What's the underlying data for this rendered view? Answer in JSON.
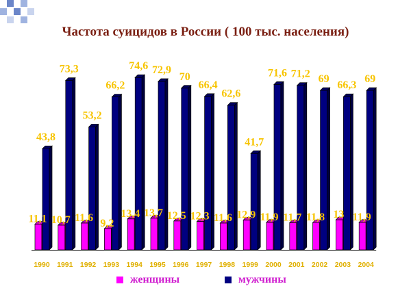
{
  "title": "Частота суицидов в России ( 100 тыс. населения)",
  "colors": {
    "women": "#ff00ff",
    "men": "#000080",
    "value_label": "#f7c400",
    "tick_label": "#e0b000",
    "title": "#7a1f12",
    "legend_text": "#d020d0"
  },
  "legend": [
    {
      "name": "женщины",
      "color": "#ff00ff"
    },
    {
      "name": "мужчины",
      "color": "#000080"
    }
  ],
  "chart_data": {
    "type": "bar",
    "title": "Частота суицидов в России ( 100 тыс. населения)",
    "categories": [
      "1990",
      "1991",
      "1992",
      "1993",
      "1994",
      "1995",
      "1996",
      "1997",
      "1998",
      "1999",
      "2000",
      "2001",
      "2002",
      "2003",
      "2004"
    ],
    "series": [
      {
        "name": "женщины",
        "values": [
          11.1,
          10.7,
          11.6,
          9.2,
          13.4,
          13.7,
          12.5,
          12.3,
          11.6,
          12.9,
          11.9,
          11.7,
          11.8,
          13,
          11.9
        ],
        "labels": [
          "11,1",
          "10,7",
          "11,6",
          "9,2",
          "13,4",
          "13,7",
          "12,5",
          "12,3",
          "11,6",
          "12,9",
          "11,9",
          "11,7",
          "11,8",
          "13",
          "11,9"
        ]
      },
      {
        "name": "мужчины",
        "values": [
          43.8,
          73.3,
          53.2,
          66.2,
          74.6,
          72.9,
          70,
          66.4,
          62.6,
          41.7,
          71.6,
          71.2,
          69,
          66.3,
          69
        ],
        "labels": [
          "43,8",
          "73,3",
          "53,2",
          "66,2",
          "74,6",
          "72,9",
          "70",
          "66,4",
          "62,6",
          "41,7",
          "71,6",
          "71,2",
          "69",
          "66,3",
          "69"
        ]
      }
    ],
    "xlabel": "",
    "ylabel": "",
    "ylim": [
      0,
      80
    ],
    "grid": false,
    "legend_position": "bottom"
  }
}
